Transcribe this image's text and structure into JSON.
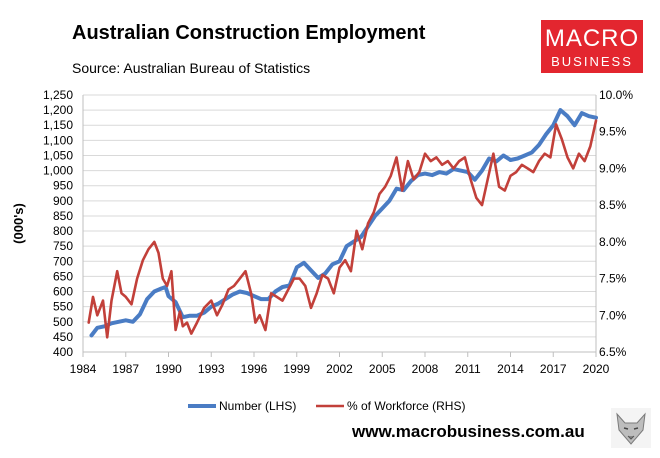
{
  "title": "Australian Construction Employment",
  "subtitle": "Source: Australian Bureau of Statistics",
  "logo": {
    "top": "MACRO",
    "bottom": "BUSINESS",
    "color": "#e3262f"
  },
  "website": "www.macrobusiness.com.au",
  "mascot_icon": "wolf-head-icon",
  "chart_data": {
    "type": "line",
    "title": "Australian Construction Employment",
    "ylabel": "(000's)",
    "x_ticks": [
      "1984",
      "1987",
      "1990",
      "1993",
      "1996",
      "1999",
      "2002",
      "2005",
      "2008",
      "2011",
      "2014",
      "2017",
      "2020"
    ],
    "xlim": [
      1984,
      2020
    ],
    "ylim_left": [
      400,
      1250
    ],
    "ylim_right": [
      6.5,
      10.0
    ],
    "y_ticks_left": [
      "400",
      "450",
      "500",
      "550",
      "600",
      "650",
      "700",
      "750",
      "800",
      "850",
      "900",
      "950",
      "1,000",
      "1,050",
      "1,100",
      "1,150",
      "1,200",
      "1,250"
    ],
    "y_ticks_right": [
      "6.5%",
      "7.0%",
      "7.5%",
      "8.0%",
      "8.5%",
      "9.0%",
      "9.5%",
      "10.0%"
    ],
    "grid": "horizontal",
    "legend_position": "bottom",
    "series": [
      {
        "name": "Number (LHS)",
        "axis": "left",
        "color": "#4a7cc4",
        "x": [
          1984.6,
          1985.0,
          1985.5,
          1986.0,
          1986.5,
          1987.0,
          1987.5,
          1988.0,
          1988.5,
          1989.0,
          1989.5,
          1989.8,
          1990.0,
          1990.5,
          1991.0,
          1991.5,
          1992.0,
          1992.5,
          1993.0,
          1993.5,
          1994.0,
          1994.5,
          1995.0,
          1995.5,
          1996.0,
          1996.5,
          1997.0,
          1997.5,
          1998.0,
          1998.5,
          1999.0,
          1999.5,
          2000.0,
          2000.5,
          2001.0,
          2001.5,
          2002.0,
          2002.5,
          2003.0,
          2003.5,
          2004.0,
          2004.5,
          2005.0,
          2005.5,
          2006.0,
          2006.5,
          2007.0,
          2007.5,
          2008.0,
          2008.5,
          2009.0,
          2009.5,
          2010.0,
          2010.5,
          2011.0,
          2011.5,
          2012.0,
          2012.5,
          2013.0,
          2013.5,
          2014.0,
          2014.5,
          2015.0,
          2015.5,
          2016.0,
          2016.5,
          2017.0,
          2017.5,
          2018.0,
          2018.5,
          2019.0,
          2019.5,
          2020.0
        ],
        "values": [
          455,
          480,
          485,
          495,
          500,
          505,
          500,
          525,
          575,
          600,
          610,
          615,
          585,
          565,
          515,
          520,
          520,
          530,
          550,
          560,
          575,
          590,
          600,
          595,
          585,
          575,
          575,
          600,
          615,
          620,
          680,
          695,
          670,
          645,
          660,
          690,
          700,
          750,
          765,
          780,
          815,
          850,
          875,
          900,
          940,
          935,
          965,
          985,
          990,
          985,
          995,
          990,
          1005,
          1000,
          995,
          970,
          1000,
          1040,
          1030,
          1050,
          1035,
          1040,
          1050,
          1060,
          1085,
          1120,
          1150,
          1200,
          1180,
          1150,
          1190,
          1180,
          1175
        ]
      },
      {
        "name": "% of Workforce (RHS)",
        "axis": "right",
        "color": "#c2403a",
        "x": [
          1984.4,
          1984.7,
          1985.0,
          1985.4,
          1985.7,
          1986.0,
          1986.4,
          1986.7,
          1987.0,
          1987.4,
          1987.8,
          1988.2,
          1988.6,
          1989.0,
          1989.3,
          1989.6,
          1989.9,
          1990.2,
          1990.5,
          1990.8,
          1991.0,
          1991.3,
          1991.6,
          1992.0,
          1992.5,
          1993.0,
          1993.4,
          1993.8,
          1994.2,
          1994.6,
          1995.0,
          1995.4,
          1995.8,
          1996.1,
          1996.4,
          1996.8,
          1997.2,
          1997.6,
          1998.0,
          1998.4,
          1998.8,
          1999.2,
          1999.6,
          2000.0,
          2000.4,
          2000.8,
          2001.2,
          2001.6,
          2002.0,
          2002.4,
          2002.8,
          2003.2,
          2003.6,
          2004.0,
          2004.4,
          2004.8,
          2005.2,
          2005.6,
          2006.0,
          2006.4,
          2006.8,
          2007.2,
          2007.6,
          2008.0,
          2008.4,
          2008.8,
          2009.2,
          2009.6,
          2010.0,
          2010.4,
          2010.8,
          2011.2,
          2011.6,
          2012.0,
          2012.4,
          2012.8,
          2013.2,
          2013.6,
          2014.0,
          2014.4,
          2014.8,
          2015.2,
          2015.6,
          2016.0,
          2016.4,
          2016.8,
          2017.2,
          2017.6,
          2018.0,
          2018.4,
          2018.8,
          2019.2,
          2019.6,
          2020.0
        ],
        "values": [
          6.9,
          7.25,
          7.0,
          7.2,
          6.7,
          7.2,
          7.6,
          7.3,
          7.25,
          7.15,
          7.5,
          7.75,
          7.9,
          8.0,
          7.85,
          7.5,
          7.4,
          7.6,
          6.8,
          7.05,
          6.85,
          6.9,
          6.75,
          6.9,
          7.1,
          7.2,
          7.0,
          7.15,
          7.35,
          7.4,
          7.5,
          7.6,
          7.3,
          6.9,
          7.0,
          6.8,
          7.3,
          7.25,
          7.2,
          7.35,
          7.5,
          7.5,
          7.4,
          7.1,
          7.3,
          7.55,
          7.5,
          7.3,
          7.65,
          7.75,
          7.6,
          8.15,
          7.9,
          8.25,
          8.4,
          8.65,
          8.75,
          8.9,
          9.15,
          8.7,
          9.1,
          8.85,
          8.95,
          9.2,
          9.1,
          9.15,
          9.05,
          9.1,
          9.0,
          9.1,
          9.15,
          8.85,
          8.6,
          8.5,
          8.85,
          9.2,
          8.75,
          8.7,
          8.9,
          8.95,
          9.05,
          9.0,
          8.95,
          9.1,
          9.2,
          9.15,
          9.6,
          9.4,
          9.15,
          9.0,
          9.2,
          9.1,
          9.3,
          9.65
        ]
      }
    ]
  }
}
